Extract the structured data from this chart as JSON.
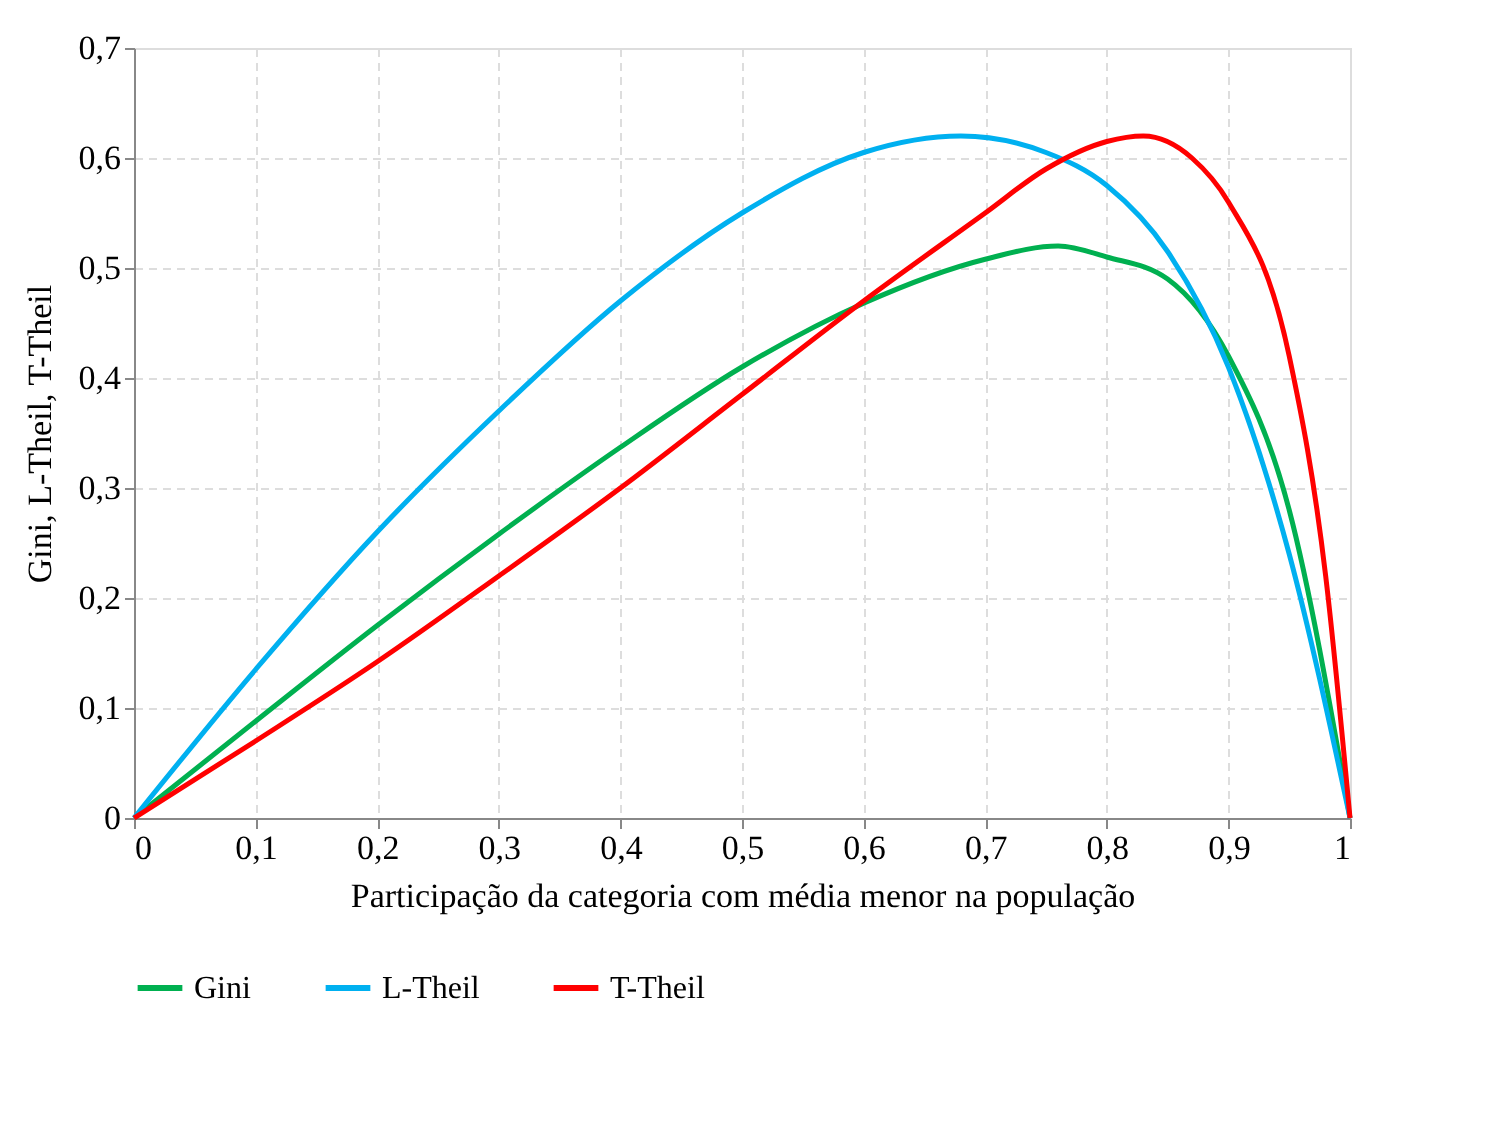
{
  "chart_data": {
    "type": "line",
    "xlabel": "Participação da categoria com média menor na população",
    "ylabel": "Gini, L-Theil, T-Theil",
    "xlim": [
      0,
      1
    ],
    "ylim": [
      0,
      0.7
    ],
    "xticks": [
      0,
      {
        "value": 0.1,
        "label": "0,1"
      },
      {
        "value": 0.2,
        "label": "0,2"
      },
      {
        "value": 0.3,
        "label": "0,3"
      },
      {
        "value": 0.4,
        "label": "0,4"
      },
      {
        "value": 0.5,
        "label": "0,5"
      },
      {
        "value": 0.6,
        "label": "0,6"
      },
      {
        "value": 0.7,
        "label": "0,7"
      },
      {
        "value": 0.8,
        "label": "0,8"
      },
      {
        "value": 0.9,
        "label": "0,9"
      },
      1
    ],
    "yticks": [
      0,
      {
        "value": 0.1,
        "label": "0,1"
      },
      {
        "value": 0.2,
        "label": "0,2"
      },
      {
        "value": 0.3,
        "label": "0,3"
      },
      {
        "value": 0.4,
        "label": "0,4"
      },
      {
        "value": 0.5,
        "label": "0,5"
      },
      {
        "value": 0.6,
        "label": "0,6"
      },
      {
        "value": 0.7,
        "label": "0,7"
      }
    ],
    "grid": true,
    "legend": "bottom",
    "marker": "none",
    "line_style": "solid",
    "series": [
      {
        "name": "Gini",
        "color": "#00b050",
        "x": [
          0,
          0.1,
          0.2,
          0.3,
          0.4,
          0.5,
          0.6,
          0.7,
          0.76,
          0.8,
          0.85,
          0.9,
          0.95,
          1
        ],
        "values": [
          0,
          0.088,
          0.175,
          0.258,
          0.337,
          0.41,
          0.468,
          0.508,
          0.52,
          0.51,
          0.49,
          0.42,
          0.28,
          0
        ]
      },
      {
        "name": "L-Theil",
        "color": "#00b0f0",
        "x": [
          0,
          0.1,
          0.2,
          0.3,
          0.4,
          0.5,
          0.6,
          0.68,
          0.75,
          0.8,
          0.85,
          0.9,
          0.95,
          1
        ],
        "values": [
          0,
          0.135,
          0.26,
          0.37,
          0.47,
          0.55,
          0.605,
          0.62,
          0.605,
          0.575,
          0.515,
          0.41,
          0.24,
          0
        ]
      },
      {
        "name": "T-Theil",
        "color": "#ff0000",
        "x": [
          0,
          0.1,
          0.2,
          0.3,
          0.4,
          0.5,
          0.6,
          0.7,
          0.75,
          0.8,
          0.83,
          0.87,
          0.9,
          0.95,
          0.98,
          1
        ],
        "values": [
          0,
          0.07,
          0.142,
          0.22,
          0.3,
          0.385,
          0.47,
          0.55,
          0.59,
          0.615,
          0.62,
          0.6,
          0.56,
          0.42,
          0.22,
          0
        ]
      }
    ]
  }
}
